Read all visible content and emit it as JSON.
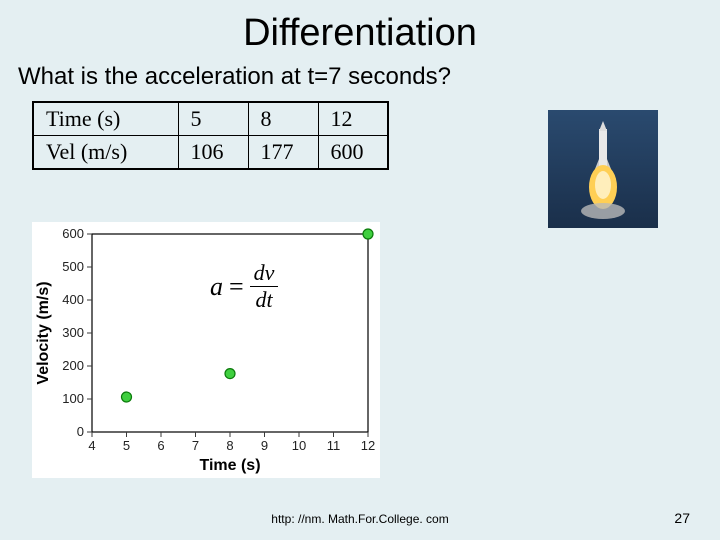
{
  "title": "Differentiation",
  "question": "What is the acceleration at t=7 seconds?",
  "table": {
    "rows": [
      [
        "Time (s)",
        "5",
        "8",
        "12"
      ],
      [
        "Vel (m/s)",
        "106",
        "177",
        "600"
      ]
    ],
    "font_family": "Times New Roman",
    "font_size": 22,
    "border_color": "#000000"
  },
  "formula": {
    "lhs": "a",
    "eq": "=",
    "num": "dv",
    "den": "dt"
  },
  "chart": {
    "type": "scatter",
    "xlabel": "Time (s)",
    "ylabel": "Velocity (m/s)",
    "xlim": [
      4,
      12
    ],
    "ylim": [
      0,
      600
    ],
    "xticks": [
      4,
      5,
      6,
      7,
      8,
      9,
      10,
      11,
      12
    ],
    "yticks": [
      0,
      100,
      200,
      300,
      400,
      500,
      600
    ],
    "points": [
      {
        "x": 5,
        "y": 106
      },
      {
        "x": 8,
        "y": 177
      },
      {
        "x": 12,
        "y": 600
      }
    ],
    "marker_fill": "#3fcf3f",
    "marker_stroke": "#0a7a0a",
    "marker_radius": 5,
    "axis_color": "#000000",
    "tick_color": "#3a3a3a",
    "label_font_family": "Arial",
    "label_fontsize": 16,
    "label_fontweight": "bold",
    "tick_fontsize": 13,
    "background_color": "#ffffff"
  },
  "rocket_alt": "rocket launch",
  "footer": "http: //nm. Math.For.College. com",
  "page_number": "27",
  "colors": {
    "page_background": "#e4eff2",
    "text": "#000000"
  }
}
